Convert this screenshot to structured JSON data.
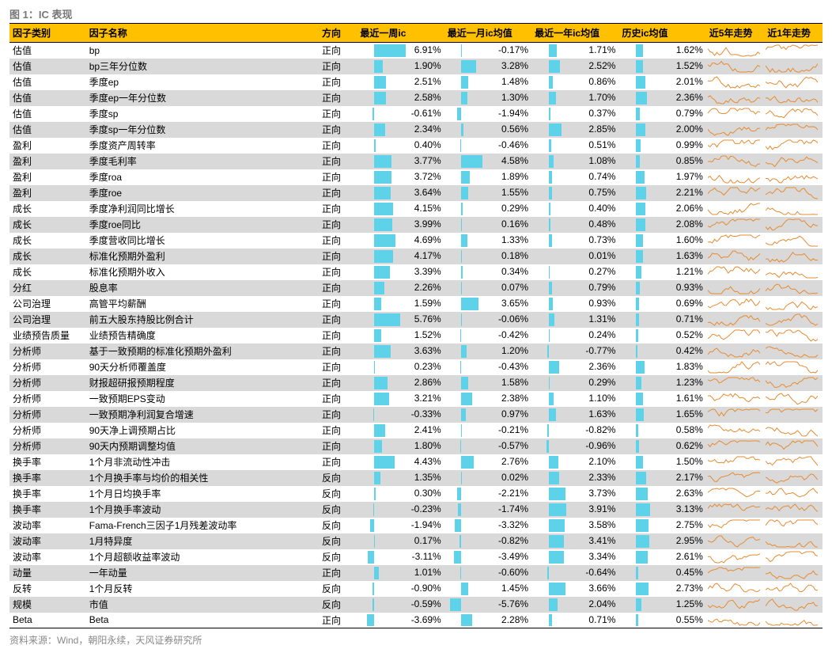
{
  "caption_prefix": "图 1：",
  "caption_title": "IC 表现",
  "source": "资料来源：Wind，朝阳永续，天风证券研究所",
  "columns": [
    "因子类别",
    "因子名称",
    "方向",
    "最近一周ic",
    "最近一月ic均值",
    "最近一年ic均值",
    "历史ic均值",
    "近5年走势",
    "近1年走势"
  ],
  "bar_color": "#5dd2e8",
  "header_bg": "#ffc000",
  "stripe_bg": "#d9d9d9",
  "val_cols_scale": {
    "max_abs": 7.0
  },
  "rows": [
    {
      "cat": "估值",
      "name": "bp",
      "dir": "正向",
      "v": [
        6.91,
        -0.17,
        1.71,
        1.62
      ]
    },
    {
      "cat": "估值",
      "name": "bp三年分位数",
      "dir": "正向",
      "v": [
        1.9,
        3.28,
        2.52,
        1.52
      ]
    },
    {
      "cat": "估值",
      "name": "季度ep",
      "dir": "正向",
      "v": [
        2.51,
        1.48,
        0.86,
        2.01
      ]
    },
    {
      "cat": "估值",
      "name": "季度ep一年分位数",
      "dir": "正向",
      "v": [
        2.58,
        1.3,
        1.7,
        2.36
      ]
    },
    {
      "cat": "估值",
      "name": "季度sp",
      "dir": "正向",
      "v": [
        -0.61,
        -1.94,
        0.37,
        0.79
      ]
    },
    {
      "cat": "估值",
      "name": "季度sp一年分位数",
      "dir": "正向",
      "v": [
        2.34,
        0.56,
        2.85,
        2.0
      ]
    },
    {
      "cat": "盈利",
      "name": "季度资产周转率",
      "dir": "正向",
      "v": [
        0.4,
        -0.46,
        0.51,
        0.99
      ]
    },
    {
      "cat": "盈利",
      "name": "季度毛利率",
      "dir": "正向",
      "v": [
        3.77,
        4.58,
        1.08,
        0.85
      ]
    },
    {
      "cat": "盈利",
      "name": "季度roa",
      "dir": "正向",
      "v": [
        3.72,
        1.89,
        0.74,
        1.97
      ]
    },
    {
      "cat": "盈利",
      "name": "季度roe",
      "dir": "正向",
      "v": [
        3.64,
        1.55,
        0.75,
        2.21
      ]
    },
    {
      "cat": "成长",
      "name": "季度净利润同比增长",
      "dir": "正向",
      "v": [
        4.15,
        0.29,
        0.4,
        2.06
      ]
    },
    {
      "cat": "成长",
      "name": "季度roe同比",
      "dir": "正向",
      "v": [
        3.99,
        0.16,
        0.48,
        2.08
      ]
    },
    {
      "cat": "成长",
      "name": "季度营收同比增长",
      "dir": "正向",
      "v": [
        4.69,
        1.33,
        0.73,
        1.6
      ]
    },
    {
      "cat": "成长",
      "name": "标准化预期外盈利",
      "dir": "正向",
      "v": [
        4.17,
        0.18,
        0.01,
        1.63
      ]
    },
    {
      "cat": "成长",
      "name": "标准化预期外收入",
      "dir": "正向",
      "v": [
        3.39,
        0.34,
        0.27,
        1.21
      ]
    },
    {
      "cat": "分红",
      "name": "股息率",
      "dir": "正向",
      "v": [
        2.26,
        0.07,
        0.79,
        0.93
      ]
    },
    {
      "cat": "公司治理",
      "name": "高管平均薪酬",
      "dir": "正向",
      "v": [
        1.59,
        3.65,
        0.93,
        0.69
      ]
    },
    {
      "cat": "公司治理",
      "name": "前五大股东持股比例合计",
      "dir": "正向",
      "v": [
        5.76,
        -0.06,
        1.31,
        0.71
      ]
    },
    {
      "cat": "业绩预告质量",
      "name": "业绩预告精确度",
      "dir": "正向",
      "v": [
        1.52,
        -0.42,
        0.24,
        0.52
      ]
    },
    {
      "cat": "分析师",
      "name": "基于一致预期的标准化预期外盈利",
      "dir": "正向",
      "v": [
        3.63,
        1.2,
        -0.77,
        0.42
      ]
    },
    {
      "cat": "分析师",
      "name": "90天分析师覆盖度",
      "dir": "正向",
      "v": [
        0.23,
        -0.43,
        2.36,
        1.83
      ]
    },
    {
      "cat": "分析师",
      "name": "财报超研报预期程度",
      "dir": "正向",
      "v": [
        2.86,
        1.58,
        0.29,
        1.23
      ]
    },
    {
      "cat": "分析师",
      "name": "一致预期EPS变动",
      "dir": "正向",
      "v": [
        3.21,
        2.38,
        1.1,
        1.61
      ]
    },
    {
      "cat": "分析师",
      "name": "一致预期净利润复合增速",
      "dir": "正向",
      "v": [
        -0.33,
        0.97,
        1.63,
        1.65
      ]
    },
    {
      "cat": "分析师",
      "name": "90天净上调预期占比",
      "dir": "正向",
      "v": [
        2.41,
        -0.21,
        -0.82,
        0.58
      ]
    },
    {
      "cat": "分析师",
      "name": "90天内预期调整均值",
      "dir": "正向",
      "v": [
        1.8,
        -0.57,
        -0.96,
        0.62
      ]
    },
    {
      "cat": "换手率",
      "name": "1个月非流动性冲击",
      "dir": "正向",
      "v": [
        4.43,
        2.76,
        2.1,
        1.5
      ]
    },
    {
      "cat": "换手率",
      "name": "1个月换手率与均价的相关性",
      "dir": "反向",
      "v": [
        1.35,
        0.02,
        2.33,
        2.17
      ]
    },
    {
      "cat": "换手率",
      "name": "1个月日均换手率",
      "dir": "反向",
      "v": [
        0.3,
        -2.21,
        3.73,
        2.63
      ]
    },
    {
      "cat": "换手率",
      "name": "1个月换手率波动",
      "dir": "反向",
      "v": [
        -0.23,
        -1.74,
        3.91,
        3.13
      ]
    },
    {
      "cat": "波动率",
      "name": "Fama-French三因子1月残差波动率",
      "dir": "反向",
      "v": [
        -1.94,
        -3.32,
        3.58,
        2.75
      ]
    },
    {
      "cat": "波动率",
      "name": "1月特异度",
      "dir": "反向",
      "v": [
        0.17,
        -0.82,
        3.41,
        2.95
      ]
    },
    {
      "cat": "波动率",
      "name": "1个月超额收益率波动",
      "dir": "反向",
      "v": [
        -3.11,
        -3.49,
        3.34,
        2.61
      ]
    },
    {
      "cat": "动量",
      "name": "一年动量",
      "dir": "正向",
      "v": [
        1.01,
        -0.6,
        -0.64,
        0.45
      ]
    },
    {
      "cat": "反转",
      "name": "1个月反转",
      "dir": "反向",
      "v": [
        -0.9,
        1.45,
        3.66,
        2.73
      ]
    },
    {
      "cat": "规模",
      "name": "市值",
      "dir": "反向",
      "v": [
        -0.59,
        -5.76,
        2.04,
        1.25
      ]
    },
    {
      "cat": "Beta",
      "name": "Beta",
      "dir": "正向",
      "v": [
        -3.69,
        2.28,
        0.71,
        0.55
      ]
    }
  ]
}
